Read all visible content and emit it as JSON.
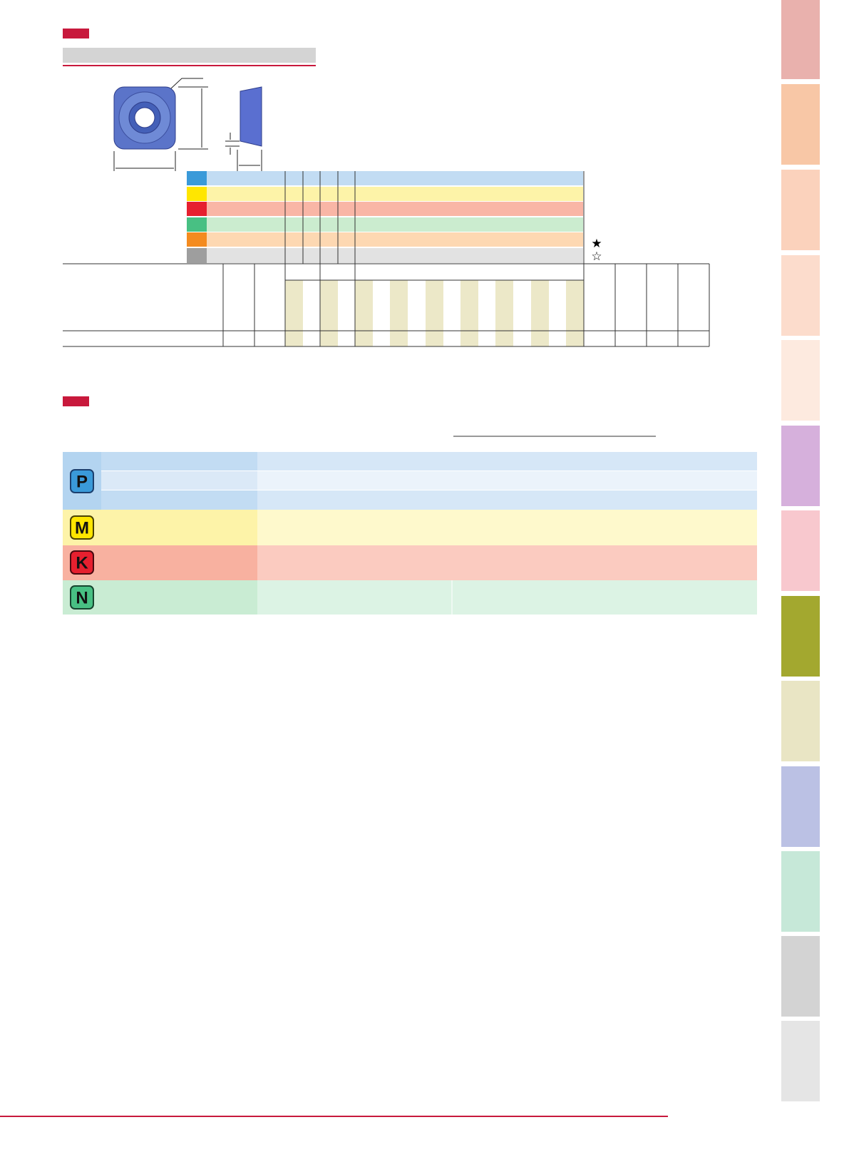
{
  "grade_legend": {
    "stars": [
      "★",
      "☆"
    ]
  },
  "materials": [
    {
      "label": "P"
    },
    {
      "label": "M"
    },
    {
      "label": "K"
    },
    {
      "label": "N"
    }
  ]
}
